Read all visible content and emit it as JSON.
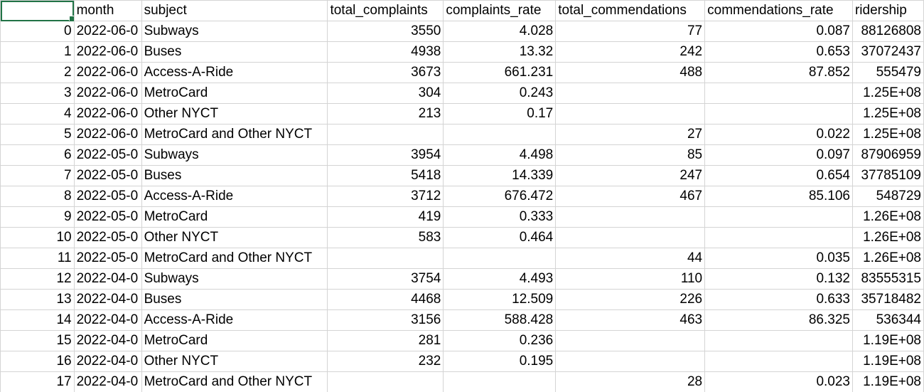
{
  "sheet": {
    "headers": [
      "",
      "month",
      "subject",
      "total_complaints",
      "complaints_rate",
      "total_commendations",
      "commendations_rate",
      "ridership"
    ],
    "rows": [
      [
        "0",
        "2022-06-0",
        "Subways",
        "3550",
        "4.028",
        "77",
        "0.087",
        "88126808"
      ],
      [
        "1",
        "2022-06-0",
        "Buses",
        "4938",
        "13.32",
        "242",
        "0.653",
        "37072437"
      ],
      [
        "2",
        "2022-06-0",
        "Access-A-Ride",
        "3673",
        "661.231",
        "488",
        "87.852",
        "555479"
      ],
      [
        "3",
        "2022-06-0",
        "MetroCard",
        "304",
        "0.243",
        "",
        "",
        "1.25E+08"
      ],
      [
        "4",
        "2022-06-0",
        "Other NYCT",
        "213",
        "0.17",
        "",
        "",
        "1.25E+08"
      ],
      [
        "5",
        "2022-06-0",
        "MetroCard and Other NYCT",
        "",
        "",
        "27",
        "0.022",
        "1.25E+08"
      ],
      [
        "6",
        "2022-05-0",
        "Subways",
        "3954",
        "4.498",
        "85",
        "0.097",
        "87906959"
      ],
      [
        "7",
        "2022-05-0",
        "Buses",
        "5418",
        "14.339",
        "247",
        "0.654",
        "37785109"
      ],
      [
        "8",
        "2022-05-0",
        "Access-A-Ride",
        "3712",
        "676.472",
        "467",
        "85.106",
        "548729"
      ],
      [
        "9",
        "2022-05-0",
        "MetroCard",
        "419",
        "0.333",
        "",
        "",
        "1.26E+08"
      ],
      [
        "10",
        "2022-05-0",
        "Other NYCT",
        "583",
        "0.464",
        "",
        "",
        "1.26E+08"
      ],
      [
        "11",
        "2022-05-0",
        "MetroCard and Other NYCT",
        "",
        "",
        "44",
        "0.035",
        "1.26E+08"
      ],
      [
        "12",
        "2022-04-0",
        "Subways",
        "3754",
        "4.493",
        "110",
        "0.132",
        "83555315"
      ],
      [
        "13",
        "2022-04-0",
        "Buses",
        "4468",
        "12.509",
        "226",
        "0.633",
        "35718482"
      ],
      [
        "14",
        "2022-04-0",
        "Access-A-Ride",
        "3156",
        "588.428",
        "463",
        "86.325",
        "536344"
      ],
      [
        "15",
        "2022-04-0",
        "MetroCard",
        "281",
        "0.236",
        "",
        "",
        "1.19E+08"
      ],
      [
        "16",
        "2022-04-0",
        "Other NYCT",
        "232",
        "0.195",
        "",
        "",
        "1.19E+08"
      ],
      [
        "17",
        "2022-04-0",
        "MetroCard and Other NYCT",
        "",
        "",
        "28",
        "0.023",
        "1.19E+08"
      ]
    ]
  },
  "colors": {
    "gridline": "#d4d4d4",
    "selection": "#217346"
  }
}
